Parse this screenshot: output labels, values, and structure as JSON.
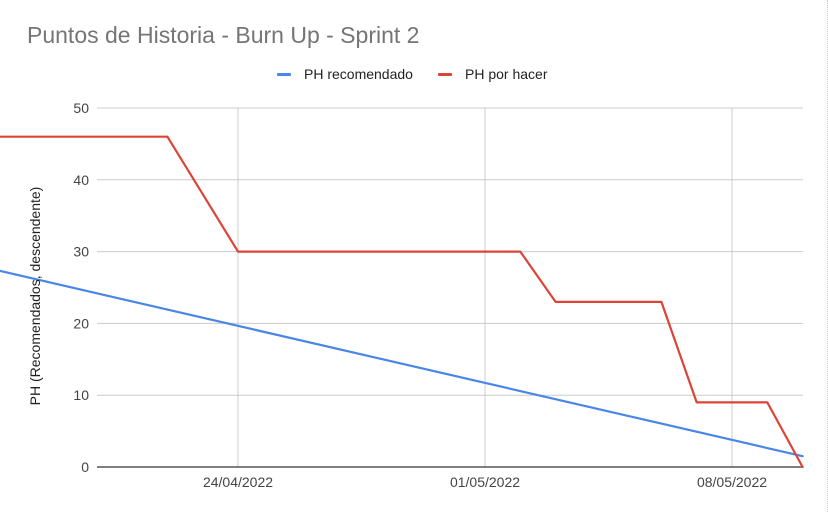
{
  "chart_data": {
    "type": "line",
    "title": "Puntos de Historia - Burn Up - Sprint 2",
    "xlabel": "",
    "ylabel": "PH (Recomendados, descendente)",
    "ylim": [
      0,
      50
    ],
    "yticks": [
      0,
      10,
      20,
      30,
      40,
      50
    ],
    "xlim": [
      "2022-04-15",
      "2022-05-11"
    ],
    "xticks": [
      {
        "value": "2022-04-24",
        "label": "24/04/2022"
      },
      {
        "value": "2022-05-01",
        "label": "01/05/2022"
      },
      {
        "value": "2022-05-08",
        "label": "08/05/2022"
      }
    ],
    "grid": true,
    "legend_position": "top",
    "series": [
      {
        "name": "PH recomendado",
        "color": "#4a86e8",
        "x": [
          "2022-04-14",
          "2022-05-10"
        ],
        "y": [
          31,
          1.5
        ]
      },
      {
        "name": "PH por hacer",
        "color": "#db4437",
        "x": [
          "2022-04-14",
          "2022-04-22",
          "2022-04-24",
          "2022-05-02",
          "2022-05-03",
          "2022-05-06",
          "2022-05-07",
          "2022-05-09",
          "2022-05-10"
        ],
        "y": [
          46,
          46,
          30,
          30,
          23,
          23,
          9,
          9,
          0
        ]
      }
    ]
  }
}
